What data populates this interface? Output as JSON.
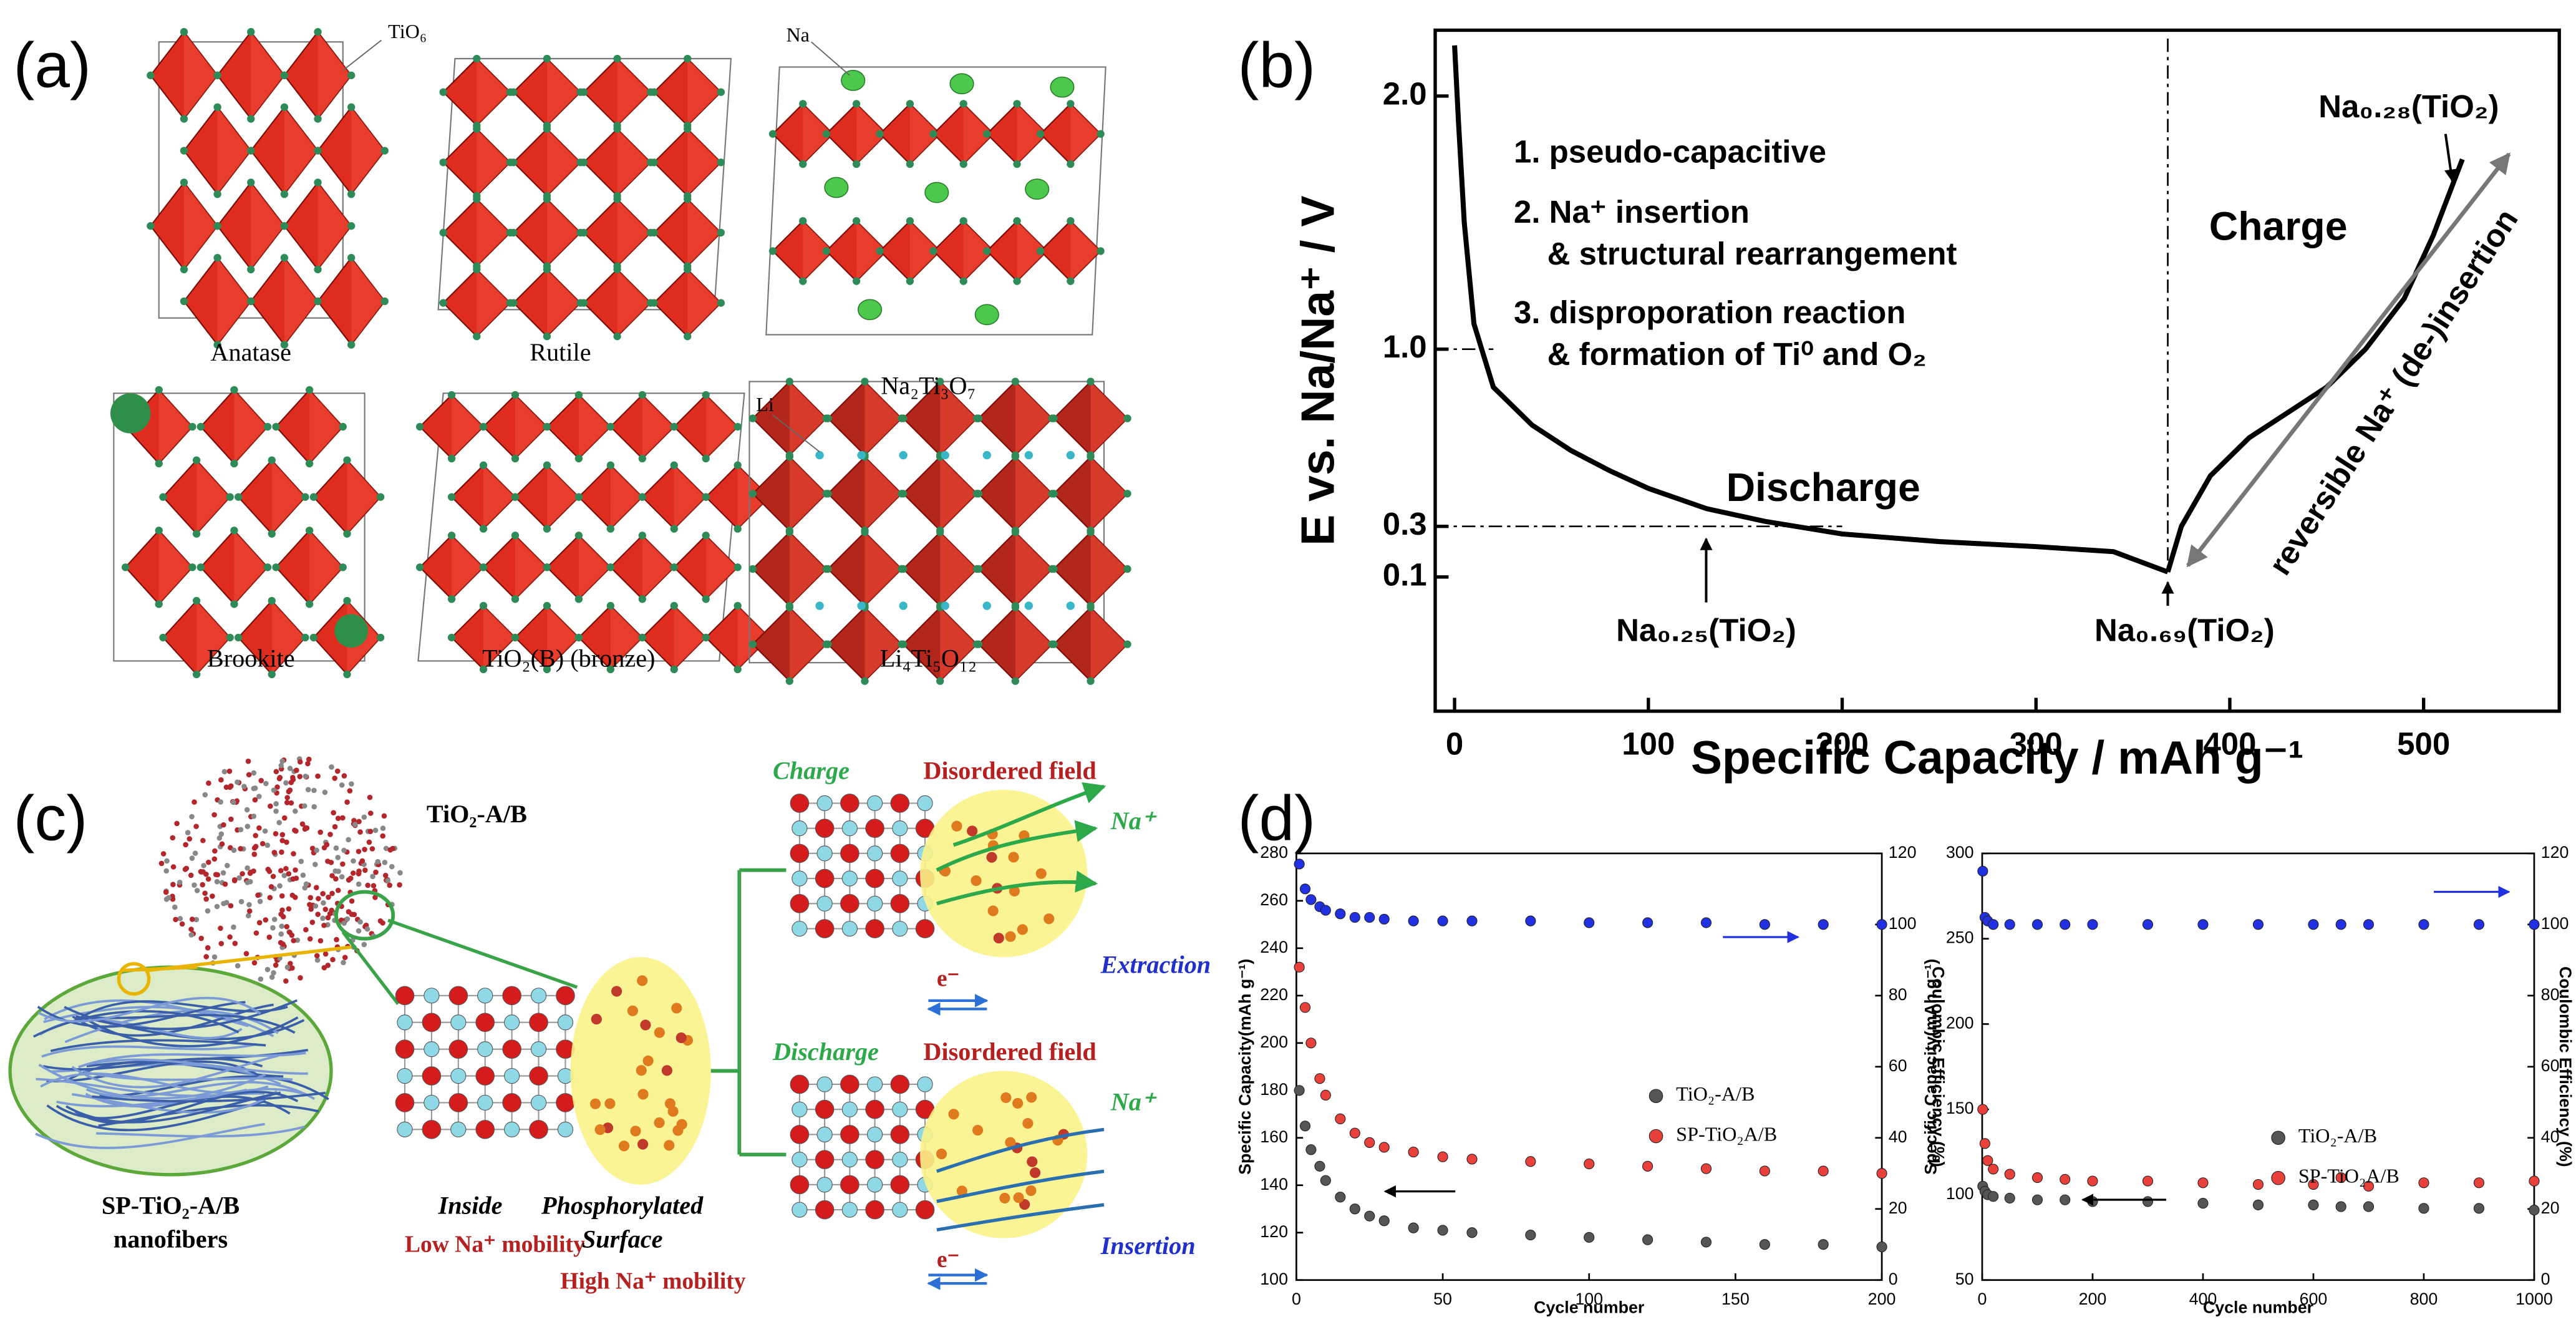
{
  "panels": [
    "(a)",
    "(b)",
    "(c)",
    "(d)"
  ],
  "figure_a": {
    "structures": [
      "Anatase",
      "Rutile",
      "Na₂Ti₃O₇",
      "Brookite",
      "TiO₂(B) (bronze)",
      "Li₄Ti₅O₁₂"
    ],
    "callouts": [
      "TiO₆",
      "Na",
      "Li"
    ]
  },
  "figure_c": {
    "material": "TiO₂-A/B",
    "fiber": [
      "SP-TiO₂-A/B",
      "nanofibers"
    ],
    "inside": "Inside",
    "low": "Low Na⁺ mobility",
    "surface": [
      "Phosphorylated",
      "Surface"
    ],
    "high": "High Na⁺ mobility",
    "charge": {
      "title": "Charge",
      "field": "Disordered field",
      "ion": "Na⁺",
      "process": "Extraction",
      "electron": "e⁻"
    },
    "discharge": {
      "title": "Discharge",
      "field": "Disordered field",
      "ion": "Na⁺",
      "process": "Insertion",
      "electron": "e⁻"
    }
  },
  "chart_data": [
    {
      "type": "line",
      "x_label": "Specific Capacity / mAh g⁻¹",
      "y_label": "E vs. Na/Na⁺ / V",
      "xlim": [
        -10,
        570
      ],
      "xticks": [
        0,
        100,
        200,
        300,
        400,
        500
      ],
      "ylim": [
        -0.43,
        2.26
      ],
      "yticks": [
        0.1,
        0.3,
        {
          "value": 1,
          "label": "1.0"
        },
        {
          "value": 2,
          "label": "2.0"
        }
      ],
      "series": [
        {
          "name": "Discharge",
          "color": "#000000",
          "x": [
            0,
            2,
            5,
            10,
            20,
            40,
            60,
            80,
            100,
            130,
            160,
            200,
            250,
            300,
            340,
            368
          ],
          "values": [
            2.2,
            1.9,
            1.5,
            1.1,
            0.85,
            0.7,
            0.6,
            0.52,
            0.45,
            0.37,
            0.32,
            0.27,
            0.24,
            0.22,
            0.2,
            0.12
          ]
        },
        {
          "name": "Charge",
          "color": "#000000",
          "x": [
            368,
            375,
            390,
            410,
            430,
            450,
            470,
            490,
            505,
            520
          ],
          "values": [
            0.12,
            0.3,
            0.5,
            0.65,
            0.75,
            0.85,
            1.0,
            1.2,
            1.45,
            1.75
          ]
        }
      ],
      "annotations": [
        "1. pseudo-capacitive",
        "2. Na⁺ insertion",
        "& structural rearrangement",
        "3. disproporation reaction",
        "& formation of Ti⁰ and O₂",
        "Na₀.₂₈(TiO₂)",
        "Na₀.₂₅(TiO₂)",
        "Na₀.₆₉(TiO₂)",
        "reversible Na⁺ (de-)insertion"
      ]
    },
    {
      "type": "scatter",
      "x_label": "Cycle number",
      "y_label": "Specific Capacity(mAh g⁻¹)",
      "y2_label": "Coulombic Efficiency (%)",
      "xlim": [
        0,
        200
      ],
      "xticks": [
        0,
        50,
        100,
        150,
        200
      ],
      "ylim": [
        100,
        280
      ],
      "yticks": [
        100,
        120,
        140,
        160,
        180,
        200,
        220,
        240,
        260,
        280
      ],
      "y2lim": [
        0,
        120
      ],
      "y2ticks": [
        0,
        20,
        40,
        60,
        80,
        100,
        120
      ],
      "x": [
        1,
        3,
        5,
        8,
        10,
        15,
        20,
        25,
        30,
        40,
        50,
        60,
        80,
        100,
        120,
        140,
        160,
        180,
        200
      ],
      "series": [
        {
          "name": "TiO₂-A/B",
          "color": "#555555",
          "values": [
            180,
            165,
            155,
            148,
            142,
            135,
            130,
            127,
            125,
            122,
            121,
            120,
            119,
            118,
            117,
            116,
            115,
            115,
            114
          ]
        },
        {
          "name": "SP-TiO₂A/B",
          "color": "#e8403a",
          "values": [
            232,
            215,
            200,
            185,
            178,
            168,
            162,
            158,
            156,
            154,
            152,
            151,
            150,
            149,
            148,
            147,
            146,
            146,
            145
          ]
        },
        {
          "color": "#2130e0",
          "axis": "y2",
          "values": [
            117,
            110,
            107,
            105,
            104,
            103,
            102,
            102,
            101.5,
            101,
            101,
            101,
            101,
            100.5,
            100.5,
            100.5,
            100,
            100,
            100
          ]
        }
      ]
    },
    {
      "type": "scatter",
      "x_label": "Cycle number",
      "y_label": "Specific Capacity(mAh g⁻¹)",
      "y2_label": "Coulombic Efficiency (%)",
      "xlim": [
        0,
        1000
      ],
      "xticks": [
        0,
        200,
        400,
        600,
        800,
        1000
      ],
      "ylim": [
        50,
        300
      ],
      "yticks": [
        50,
        100,
        150,
        200,
        250,
        300
      ],
      "y2lim": [
        0,
        120
      ],
      "y2ticks": [
        0,
        20,
        40,
        60,
        80,
        100,
        120
      ],
      "x": [
        1,
        5,
        10,
        20,
        50,
        100,
        150,
        200,
        300,
        400,
        500,
        600,
        650,
        700,
        800,
        900,
        1000
      ],
      "series": [
        {
          "name": "TiO₂-A/B",
          "color": "#555555",
          "values": [
            105,
            102,
            100,
            99,
            98,
            97,
            97,
            96,
            96,
            95,
            94,
            94,
            93,
            93,
            92,
            92,
            91
          ]
        },
        {
          "name": "SP-TiO₂A/B",
          "color": "#e8403a",
          "values": [
            150,
            130,
            120,
            115,
            112,
            110,
            109,
            108,
            108,
            107,
            106,
            106,
            110,
            105,
            107,
            107,
            108
          ]
        },
        {
          "color": "#2130e0",
          "axis": "y2",
          "values": [
            115,
            102,
            101,
            100,
            100,
            100,
            100,
            100,
            100,
            100,
            100,
            100,
            100,
            100,
            100,
            100,
            100
          ]
        }
      ]
    }
  ]
}
